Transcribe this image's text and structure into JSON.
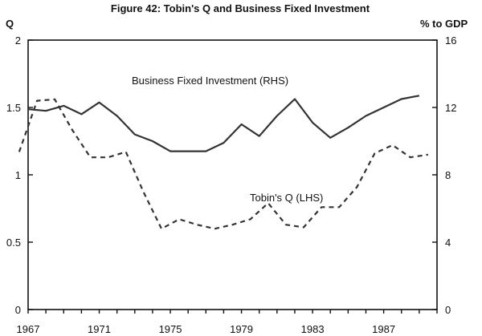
{
  "chart_data": {
    "type": "line",
    "title": "Figure 42: Tobin's Q and Business Fixed Investment",
    "left_axis": {
      "label": "Q",
      "range": [
        0,
        2
      ],
      "ticks": [
        "0",
        "0.5",
        "1",
        "1.5",
        "2"
      ]
    },
    "right_axis": {
      "label": "% to GDP",
      "range": [
        0,
        16
      ],
      "ticks": [
        "0",
        "4",
        "8",
        "12",
        "16"
      ]
    },
    "x_axis": {
      "range": [
        1967,
        1990
      ],
      "ticks": [
        "1967",
        "1971",
        "1975",
        "1979",
        "1983",
        "1987"
      ]
    },
    "series": [
      {
        "name": "Business Fixed Investment (RHS)",
        "label": "Business Fixed Investment (RHS)",
        "axis": "right",
        "style": "solid",
        "x": [
          1967,
          1968,
          1969,
          1970,
          1971,
          1972,
          1973,
          1974,
          1975,
          1976,
          1977,
          1978,
          1979,
          1980,
          1981,
          1982,
          1983,
          1984,
          1985,
          1986,
          1987,
          1988,
          1989
        ],
        "values": [
          11.9,
          11.8,
          12.1,
          11.6,
          12.3,
          11.5,
          10.4,
          10.0,
          9.4,
          9.4,
          9.4,
          9.9,
          11.0,
          10.3,
          11.5,
          12.5,
          11.1,
          10.2,
          10.8,
          11.5,
          12.0,
          12.5,
          12.7
        ]
      },
      {
        "name": "Tobin's Q (LHS)",
        "label": "Tobin's Q (LHS)",
        "axis": "left",
        "style": "dashed",
        "x": [
          1966.5,
          1967.5,
          1968.5,
          1969.5,
          1970.5,
          1971.5,
          1972.5,
          1973.5,
          1974.5,
          1975.5,
          1976.5,
          1977.5,
          1978.5,
          1979.5,
          1980.5,
          1981.5,
          1982.5,
          1983.5,
          1984.5,
          1985.5,
          1986.5,
          1987.5,
          1988.5,
          1989.5
        ],
        "values": [
          1.17,
          1.55,
          1.56,
          1.33,
          1.13,
          1.13,
          1.17,
          0.87,
          0.6,
          0.67,
          0.63,
          0.6,
          0.63,
          0.67,
          0.79,
          0.63,
          0.61,
          0.76,
          0.76,
          0.91,
          1.16,
          1.22,
          1.13,
          1.15
        ]
      }
    ]
  }
}
